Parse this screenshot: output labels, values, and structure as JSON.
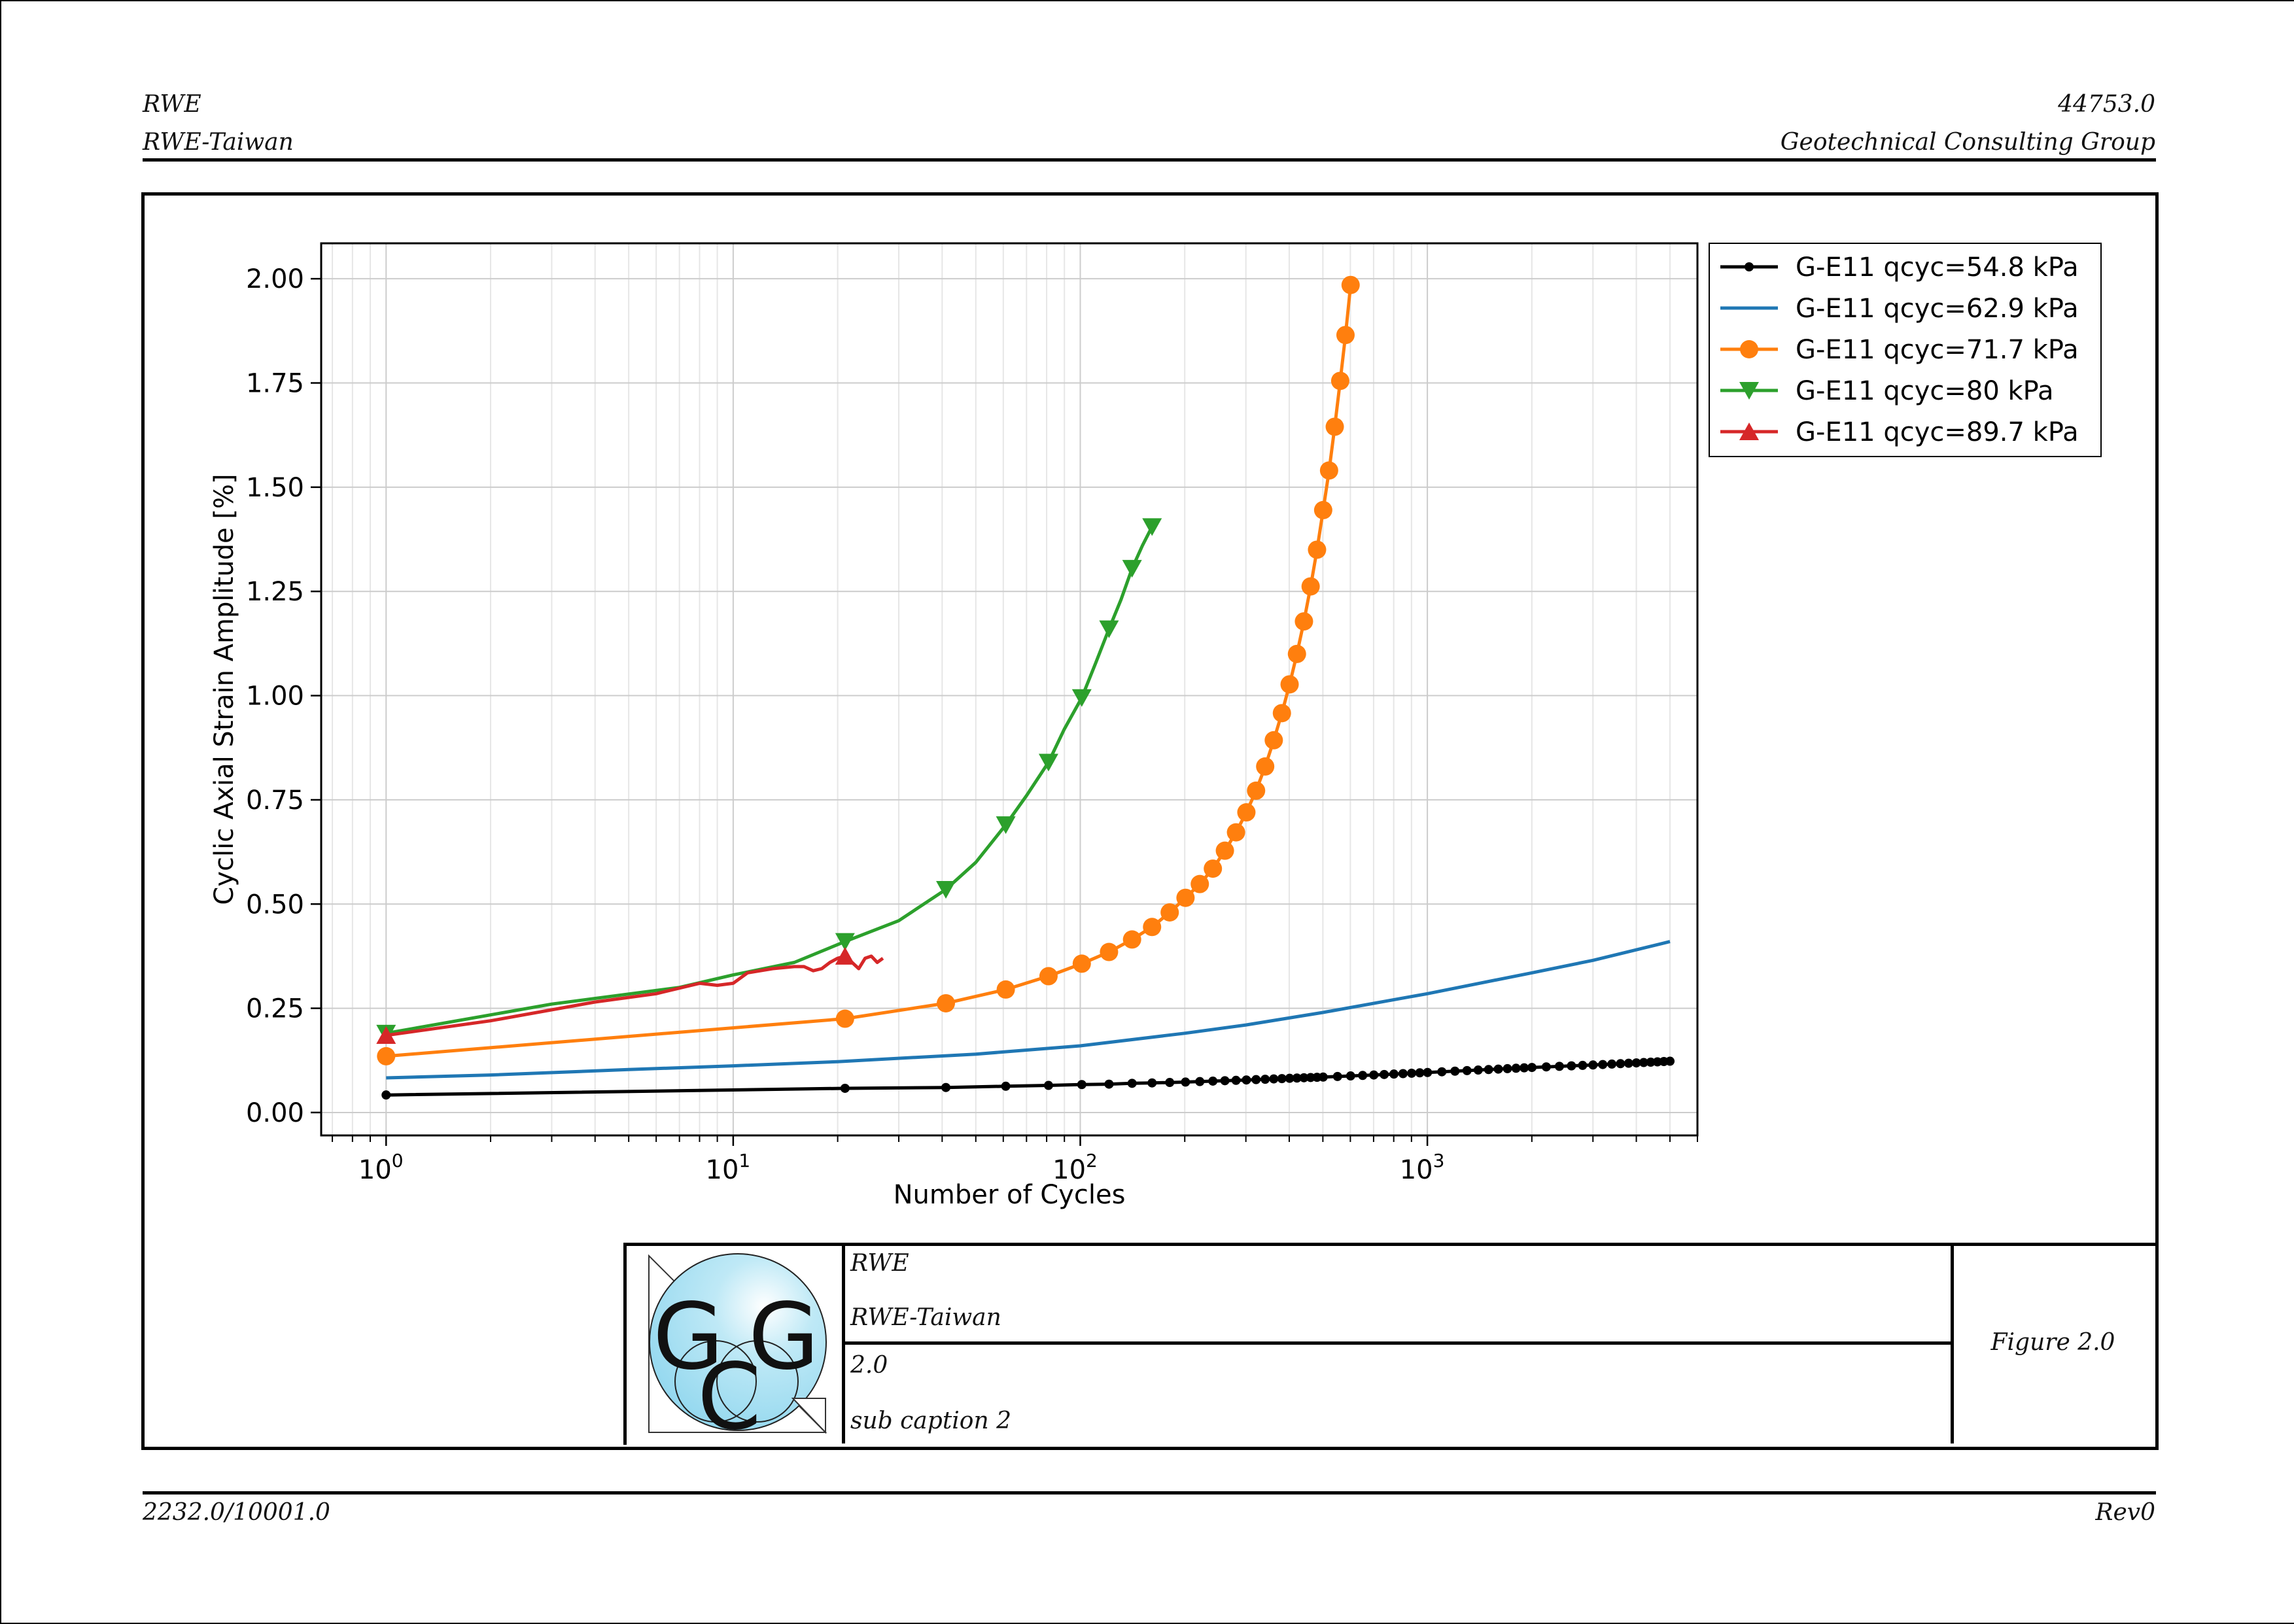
{
  "header": {
    "left_line1": "RWE",
    "left_line2": "RWE-Taiwan",
    "right_line1": "44753.0",
    "right_line2": "Geotechnical Consulting Group"
  },
  "footer": {
    "left": "2232.0/10001.0",
    "right": "Rev0"
  },
  "title_block": {
    "client": "RWE",
    "project": "RWE-Taiwan",
    "number": "2.0",
    "caption": "sub caption 2",
    "figure": "Figure 2.0",
    "logo_text": "GCG"
  },
  "colors": {
    "black": "#000000",
    "blue": "#1f77b4",
    "orange": "#ff7f0e",
    "green": "#2ca02c",
    "red": "#d62728",
    "logo_fill": "#aee3f3"
  },
  "chart_data": {
    "type": "line",
    "xscale": "log",
    "xlabel": "Number of Cycles",
    "ylabel": "Cyclic Axial Strain Amplitude [%]",
    "xlim": [
      0.65,
      6000
    ],
    "ylim": [
      -0.055,
      2.085
    ],
    "x_ticks": [
      1,
      10,
      100,
      1000
    ],
    "x_tick_labels": [
      {
        "base": "10",
        "exp": "0"
      },
      {
        "base": "10",
        "exp": "1"
      },
      {
        "base": "10",
        "exp": "2"
      },
      {
        "base": "10",
        "exp": "3"
      }
    ],
    "y_ticks": [
      0,
      0.25,
      0.5,
      0.75,
      1.0,
      1.25,
      1.5,
      1.75,
      2.0
    ],
    "y_tick_labels": [
      "0.00",
      "0.25",
      "0.50",
      "0.75",
      "1.00",
      "1.25",
      "1.50",
      "1.75",
      "2.00"
    ],
    "grid": true,
    "legend_position": "outside-top-right",
    "series": [
      {
        "name": "G-E11 qcyc=54.8 kPa",
        "color": "#000000",
        "marker": "dot",
        "x": [
          1,
          21,
          41,
          61,
          81,
          101,
          121,
          141,
          161,
          181,
          201,
          301,
          401,
          501,
          701,
          1001,
          1501,
          2001,
          3001,
          4001,
          5001
        ],
        "y": [
          0.042,
          0.058,
          0.06,
          0.063,
          0.065,
          0.067,
          0.068,
          0.07,
          0.071,
          0.072,
          0.073,
          0.078,
          0.082,
          0.085,
          0.09,
          0.096,
          0.103,
          0.108,
          0.114,
          0.119,
          0.123
        ],
        "marker_x": [
          1,
          21,
          41,
          61,
          81,
          101,
          121,
          141,
          161,
          181,
          201,
          221,
          241,
          261,
          281,
          301,
          321,
          341,
          361,
          381,
          401,
          421,
          441,
          461,
          481,
          501,
          551,
          601,
          651,
          701,
          751,
          801,
          851,
          901,
          951,
          1001,
          1101,
          1201,
          1301,
          1401,
          1501,
          1601,
          1701,
          1801,
          1901,
          2001,
          2201,
          2401,
          2601,
          2801,
          3001,
          3201,
          3401,
          3601,
          3801,
          4001,
          4201,
          4401,
          4601,
          4801,
          5001
        ]
      },
      {
        "name": "G-E11 qcyc=62.9 kPa",
        "color": "#1f77b4",
        "marker": "none",
        "x": [
          1,
          2,
          5,
          10,
          20,
          50,
          100,
          200,
          300,
          500,
          1000,
          2000,
          3000,
          5000
        ],
        "y": [
          0.083,
          0.09,
          0.103,
          0.112,
          0.122,
          0.14,
          0.16,
          0.19,
          0.21,
          0.24,
          0.285,
          0.335,
          0.365,
          0.41
        ]
      },
      {
        "name": "G-E11 qcyc=71.7 kPa",
        "color": "#ff7f0e",
        "marker": "circle",
        "x": [
          1,
          21,
          41,
          61,
          81,
          101,
          121,
          141,
          161,
          181,
          201,
          221,
          241,
          261,
          281,
          301,
          321,
          341,
          361,
          381,
          401,
          421,
          441,
          461,
          481,
          501,
          521,
          541,
          561,
          581,
          601
        ],
        "y": [
          0.135,
          0.225,
          0.262,
          0.295,
          0.327,
          0.357,
          0.385,
          0.415,
          0.445,
          0.48,
          0.515,
          0.548,
          0.585,
          0.628,
          0.672,
          0.72,
          0.772,
          0.83,
          0.893,
          0.958,
          1.027,
          1.1,
          1.178,
          1.262,
          1.35,
          1.445,
          1.54,
          1.645,
          1.755,
          1.865,
          1.985
        ]
      },
      {
        "name": "G-E11 qcyc=80 kPa",
        "color": "#2ca02c",
        "marker": "triangle-down",
        "x": [
          1,
          3,
          7,
          10,
          15,
          21,
          30,
          41,
          50,
          61,
          70,
          81,
          90,
          101,
          111,
          121,
          131,
          141,
          151,
          161
        ],
        "y": [
          0.19,
          0.26,
          0.3,
          0.33,
          0.36,
          0.41,
          0.46,
          0.535,
          0.6,
          0.69,
          0.76,
          0.84,
          0.92,
          0.995,
          1.08,
          1.16,
          1.23,
          1.305,
          1.36,
          1.405
        ],
        "marker_x": [
          1,
          21,
          41,
          61,
          81,
          101,
          121,
          141,
          161
        ],
        "marker_y": [
          0.19,
          0.41,
          0.535,
          0.69,
          0.84,
          0.995,
          1.16,
          1.305,
          1.405
        ]
      },
      {
        "name": "G-E11 qcyc=89.7 kPa",
        "color": "#d62728",
        "marker": "triangle-up",
        "x": [
          1,
          2,
          4,
          6,
          8,
          9,
          10,
          11,
          13,
          15,
          16,
          17,
          18,
          19,
          20,
          21,
          22,
          23,
          24,
          25,
          26,
          27
        ],
        "y": [
          0.185,
          0.22,
          0.265,
          0.285,
          0.31,
          0.305,
          0.31,
          0.335,
          0.345,
          0.35,
          0.35,
          0.34,
          0.345,
          0.36,
          0.37,
          0.375,
          0.36,
          0.345,
          0.37,
          0.375,
          0.36,
          0.37
        ],
        "marker_x": [
          1,
          21
        ],
        "marker_y": [
          0.185,
          0.375
        ]
      }
    ]
  }
}
